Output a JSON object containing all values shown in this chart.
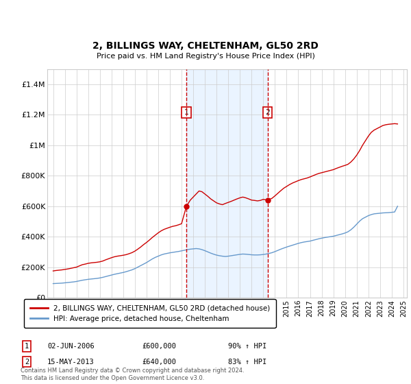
{
  "title": "2, BILLINGS WAY, CHELTENHAM, GL50 2RD",
  "subtitle": "Price paid vs. HM Land Registry's House Price Index (HPI)",
  "footer": "Contains HM Land Registry data © Crown copyright and database right 2024.\nThis data is licensed under the Open Government Licence v3.0.",
  "legend_line1": "2, BILLINGS WAY, CHELTENHAM, GL50 2RD (detached house)",
  "legend_line2": "HPI: Average price, detached house, Cheltenham",
  "transaction1_label": "1",
  "transaction1_date": "02-JUN-2006",
  "transaction1_price": "£600,000",
  "transaction1_hpi": "90% ↑ HPI",
  "transaction1_year": 2006.42,
  "transaction2_label": "2",
  "transaction2_date": "15-MAY-2013",
  "transaction2_price": "£640,000",
  "transaction2_hpi": "83% ↑ HPI",
  "transaction2_year": 2013.37,
  "ylim": [
    0,
    1500000
  ],
  "yticks": [
    0,
    200000,
    400000,
    600000,
    800000,
    1000000,
    1200000,
    1400000
  ],
  "ytick_labels": [
    "£0",
    "£200K",
    "£400K",
    "£600K",
    "£800K",
    "£1M",
    "£1.2M",
    "£1.4M"
  ],
  "red_line_color": "#cc0000",
  "blue_line_color": "#6699cc",
  "vline_color": "#cc0000",
  "shade_color": "#ddeeff",
  "grid_color": "#cccccc",
  "background_color": "#ffffff",
  "red_x": [
    1995.0,
    1995.25,
    1995.5,
    1995.75,
    1996.0,
    1996.25,
    1996.5,
    1996.75,
    1997.0,
    1997.25,
    1997.5,
    1997.75,
    1998.0,
    1998.25,
    1998.5,
    1998.75,
    1999.0,
    1999.25,
    1999.5,
    1999.75,
    2000.0,
    2000.25,
    2000.5,
    2000.75,
    2001.0,
    2001.25,
    2001.5,
    2001.75,
    2002.0,
    2002.25,
    2002.5,
    2002.75,
    2003.0,
    2003.25,
    2003.5,
    2003.75,
    2004.0,
    2004.25,
    2004.5,
    2004.75,
    2005.0,
    2005.25,
    2005.5,
    2005.75,
    2006.0,
    2006.42,
    2006.75,
    2007.0,
    2007.25,
    2007.5,
    2007.75,
    2008.0,
    2008.25,
    2008.5,
    2008.75,
    2009.0,
    2009.25,
    2009.5,
    2009.75,
    2010.0,
    2010.25,
    2010.5,
    2010.75,
    2011.0,
    2011.25,
    2011.5,
    2011.75,
    2012.0,
    2012.25,
    2012.5,
    2012.75,
    2013.0,
    2013.37,
    2013.75,
    2014.0,
    2014.25,
    2014.5,
    2014.75,
    2015.0,
    2015.25,
    2015.5,
    2015.75,
    2016.0,
    2016.25,
    2016.5,
    2016.75,
    2017.0,
    2017.25,
    2017.5,
    2017.75,
    2018.0,
    2018.25,
    2018.5,
    2018.75,
    2019.0,
    2019.25,
    2019.5,
    2019.75,
    2020.0,
    2020.25,
    2020.5,
    2020.75,
    2021.0,
    2021.25,
    2021.5,
    2021.75,
    2022.0,
    2022.25,
    2022.5,
    2022.75,
    2023.0,
    2023.25,
    2023.5,
    2023.75,
    2024.0,
    2024.25,
    2024.5
  ],
  "red_y": [
    175000,
    178000,
    180000,
    182000,
    185000,
    188000,
    192000,
    196000,
    200000,
    208000,
    216000,
    220000,
    225000,
    228000,
    230000,
    232000,
    235000,
    240000,
    248000,
    255000,
    262000,
    268000,
    272000,
    275000,
    278000,
    282000,
    288000,
    295000,
    305000,
    318000,
    332000,
    348000,
    362000,
    378000,
    395000,
    410000,
    425000,
    438000,
    448000,
    455000,
    462000,
    468000,
    472000,
    478000,
    485000,
    600000,
    640000,
    660000,
    680000,
    700000,
    695000,
    680000,
    665000,
    648000,
    635000,
    622000,
    615000,
    610000,
    618000,
    625000,
    632000,
    640000,
    648000,
    655000,
    660000,
    655000,
    648000,
    640000,
    638000,
    635000,
    638000,
    645000,
    640000,
    652000,
    668000,
    685000,
    702000,
    718000,
    730000,
    742000,
    752000,
    760000,
    768000,
    775000,
    780000,
    785000,
    792000,
    800000,
    808000,
    815000,
    820000,
    825000,
    830000,
    835000,
    840000,
    848000,
    855000,
    862000,
    868000,
    875000,
    890000,
    910000,
    935000,
    965000,
    1000000,
    1030000,
    1060000,
    1085000,
    1100000,
    1110000,
    1120000,
    1130000,
    1135000,
    1138000,
    1140000,
    1142000,
    1140000
  ],
  "blue_x": [
    1995.0,
    1995.25,
    1995.5,
    1995.75,
    1996.0,
    1996.25,
    1996.5,
    1996.75,
    1997.0,
    1997.25,
    1997.5,
    1997.75,
    1998.0,
    1998.25,
    1998.5,
    1998.75,
    1999.0,
    1999.25,
    1999.5,
    1999.75,
    2000.0,
    2000.25,
    2000.5,
    2000.75,
    2001.0,
    2001.25,
    2001.5,
    2001.75,
    2002.0,
    2002.25,
    2002.5,
    2002.75,
    2003.0,
    2003.25,
    2003.5,
    2003.75,
    2004.0,
    2004.25,
    2004.5,
    2004.75,
    2005.0,
    2005.25,
    2005.5,
    2005.75,
    2006.0,
    2006.25,
    2006.5,
    2006.75,
    2007.0,
    2007.25,
    2007.5,
    2007.75,
    2008.0,
    2008.25,
    2008.5,
    2008.75,
    2009.0,
    2009.25,
    2009.5,
    2009.75,
    2010.0,
    2010.25,
    2010.5,
    2010.75,
    2011.0,
    2011.25,
    2011.5,
    2011.75,
    2012.0,
    2012.25,
    2012.5,
    2012.75,
    2013.0,
    2013.25,
    2013.5,
    2013.75,
    2014.0,
    2014.25,
    2014.5,
    2014.75,
    2015.0,
    2015.25,
    2015.5,
    2015.75,
    2016.0,
    2016.25,
    2016.5,
    2016.75,
    2017.0,
    2017.25,
    2017.5,
    2017.75,
    2018.0,
    2018.25,
    2018.5,
    2018.75,
    2019.0,
    2019.25,
    2019.5,
    2019.75,
    2020.0,
    2020.25,
    2020.5,
    2020.75,
    2021.0,
    2021.25,
    2021.5,
    2021.75,
    2022.0,
    2022.25,
    2022.5,
    2022.75,
    2023.0,
    2023.25,
    2023.5,
    2023.75,
    2024.0,
    2024.25,
    2024.5
  ],
  "blue_y": [
    92000,
    93000,
    94000,
    95000,
    97000,
    99000,
    101000,
    103000,
    106000,
    110000,
    114000,
    117000,
    120000,
    122000,
    124000,
    126000,
    129000,
    133000,
    138000,
    143000,
    148000,
    153000,
    157000,
    161000,
    165000,
    170000,
    176000,
    182000,
    190000,
    200000,
    210000,
    220000,
    230000,
    242000,
    254000,
    264000,
    272000,
    280000,
    286000,
    290000,
    294000,
    297000,
    300000,
    303000,
    307000,
    311000,
    315000,
    318000,
    320000,
    322000,
    320000,
    315000,
    308000,
    300000,
    292000,
    285000,
    279000,
    275000,
    272000,
    270000,
    272000,
    275000,
    278000,
    281000,
    284000,
    286000,
    285000,
    283000,
    281000,
    280000,
    280000,
    281000,
    283000,
    286000,
    290000,
    295000,
    302000,
    310000,
    318000,
    325000,
    332000,
    338000,
    344000,
    350000,
    356000,
    361000,
    365000,
    368000,
    371000,
    376000,
    381000,
    386000,
    390000,
    394000,
    397000,
    400000,
    403000,
    408000,
    413000,
    418000,
    424000,
    432000,
    445000,
    462000,
    482000,
    502000,
    518000,
    528000,
    538000,
    545000,
    550000,
    552000,
    554000,
    556000,
    557000,
    558000,
    560000,
    562000,
    600000
  ]
}
